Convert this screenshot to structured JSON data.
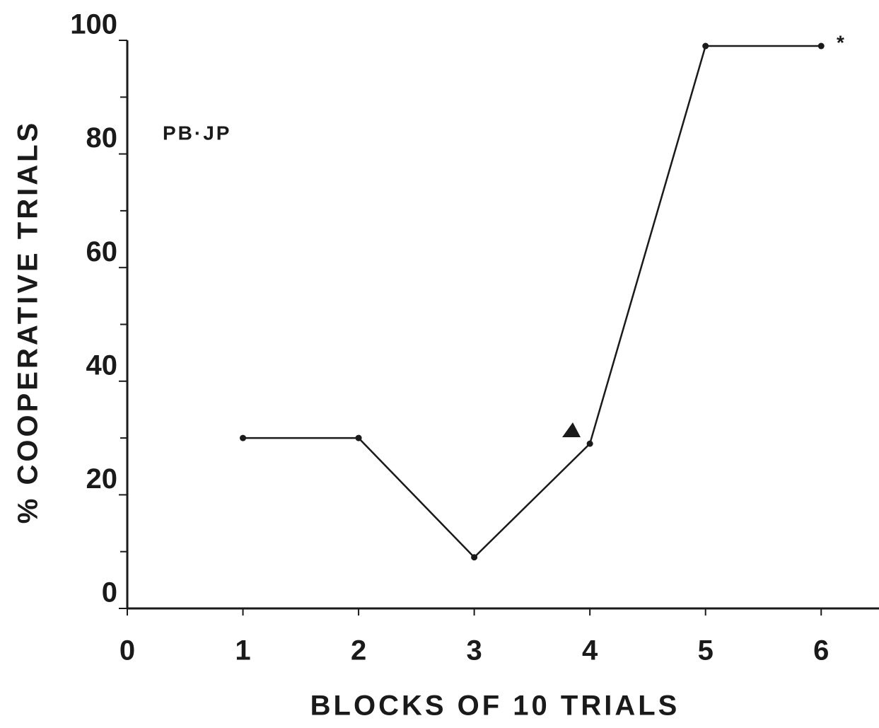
{
  "chart_data": {
    "type": "line",
    "x_label": "BLOCKS OF 10 TRIALS",
    "y_label": "% COOPERATIVE TRIALS",
    "annotations": [
      "PB·JP",
      "*"
    ],
    "x": [
      1,
      2,
      3,
      4,
      5,
      6
    ],
    "series": [
      {
        "color": "#1a1a1a",
        "values": [
          30,
          30,
          9,
          29,
          99,
          99
        ]
      }
    ],
    "xlim": [
      0,
      6.5
    ],
    "xticks": [
      0,
      1,
      2,
      3,
      4,
      5,
      6
    ],
    "ylim": [
      0,
      100
    ],
    "yticks": [
      0,
      20,
      40,
      60,
      80,
      100
    ],
    "yminor_ticks": [
      10,
      30,
      50,
      70,
      90
    ],
    "grid": false
  }
}
